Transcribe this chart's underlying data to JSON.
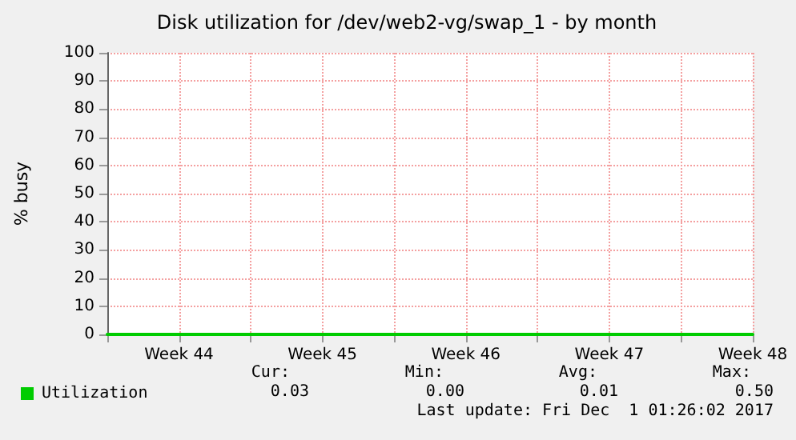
{
  "chart_data": {
    "type": "line",
    "title": "Disk utilization for /dev/web2-vg/swap_1 - by month",
    "ylabel": "% busy",
    "categories": [
      null,
      "Week 44",
      null,
      "Week 45",
      null,
      "Week 46",
      null,
      "Week 47",
      null,
      "Week 48"
    ],
    "series": [
      {
        "name": "Utilization",
        "color": "#00cc00",
        "values": [
          0,
          0,
          0,
          0,
          0,
          0,
          0,
          0,
          0,
          0
        ]
      }
    ],
    "ylim": [
      0,
      100
    ],
    "yticks": [
      0,
      10,
      20,
      30,
      40,
      50,
      60,
      70,
      80,
      90,
      100
    ],
    "grid": true,
    "legend": "bottom left",
    "marker": "none",
    "line_style": "solid",
    "annotations": [
      "Cur:",
      "Min:",
      "Avg:",
      "Max:",
      "0.03",
      "0.00",
      "0.01",
      "0.50",
      "Last update: Fri Dec  1 01:26:02 2017"
    ]
  }
}
